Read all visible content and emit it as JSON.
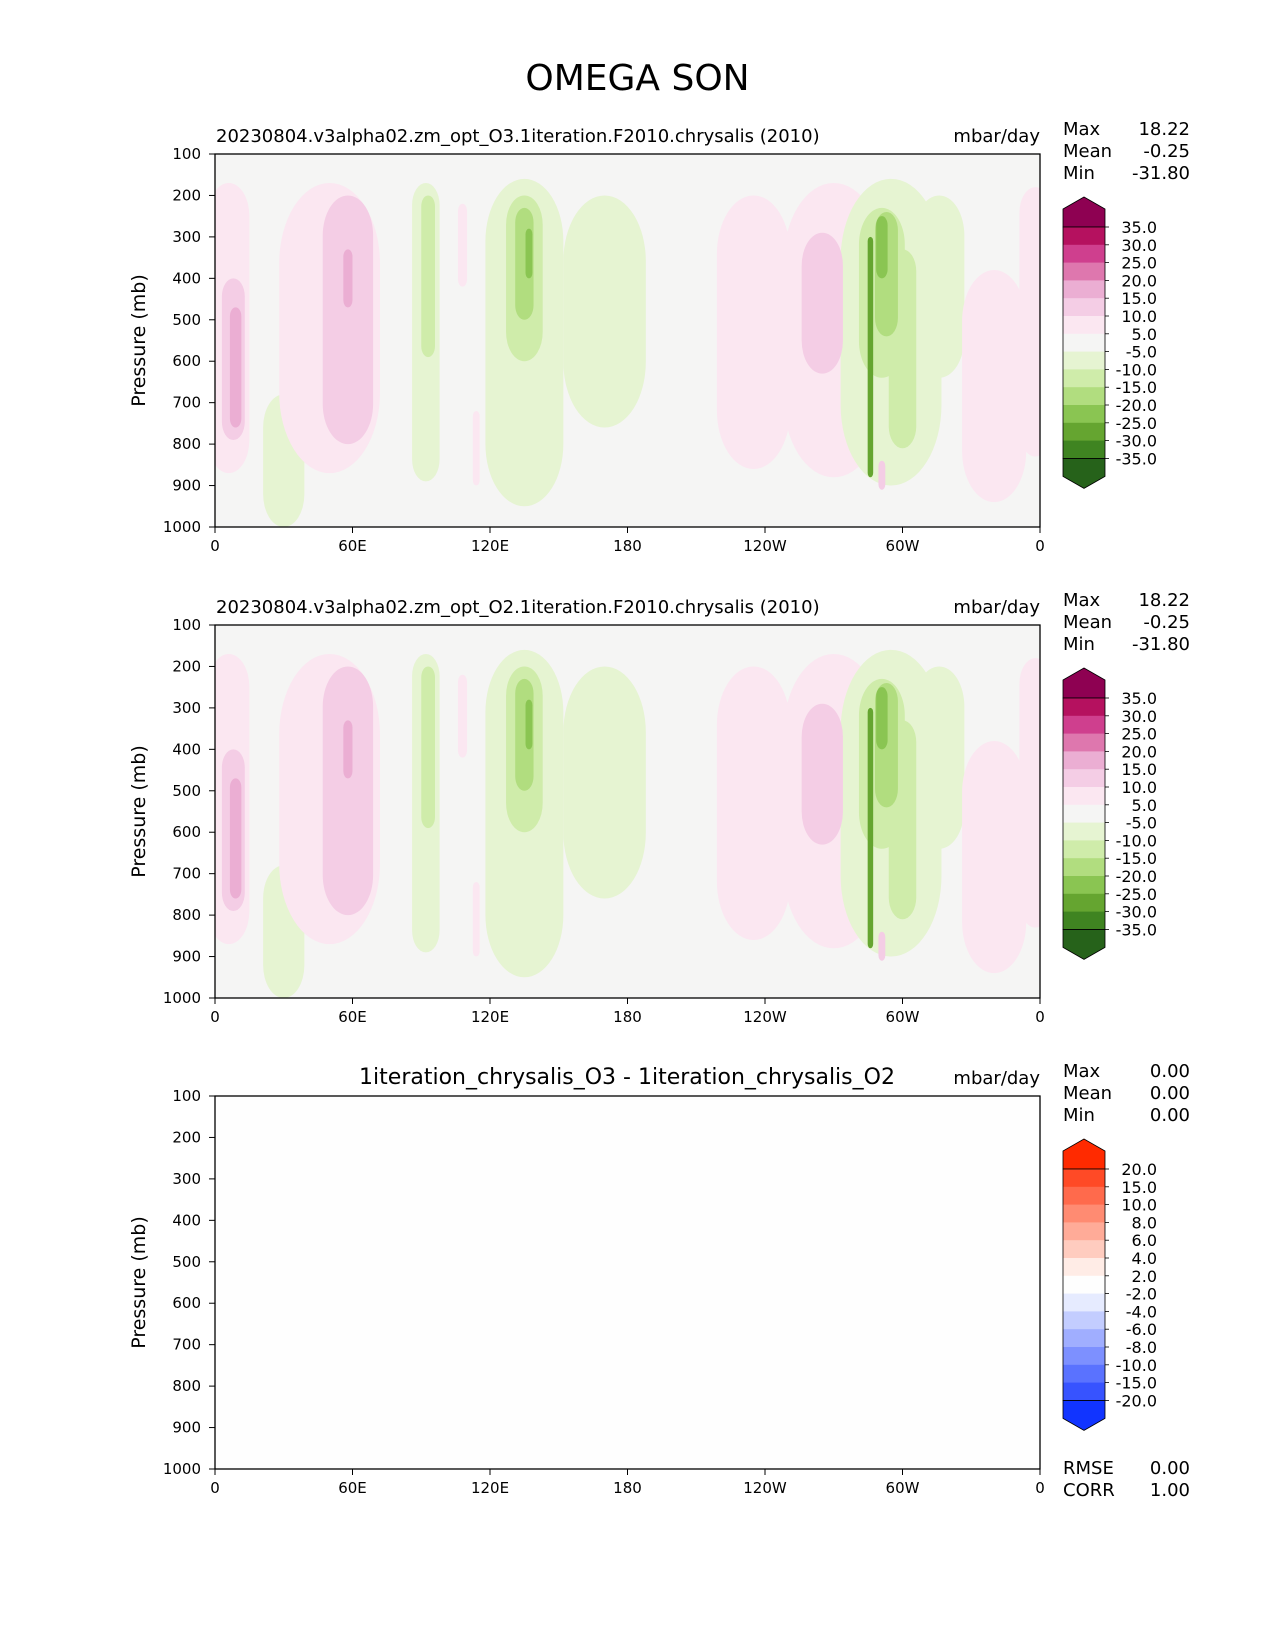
{
  "figure": {
    "title": "OMEGA SON"
  },
  "chart_data": [
    {
      "type": "contour",
      "title": "20230804.v3alpha02.zm_opt_O3.1iteration.F2010.chrysalis (2010)",
      "units": "mbar/day",
      "ylabel": "Pressure (mb)",
      "x_ticks": [
        "0",
        "60E",
        "120E",
        "180",
        "120W",
        "60W",
        "0"
      ],
      "x_range": [
        0,
        360
      ],
      "y_ticks": [
        "100",
        "200",
        "300",
        "400",
        "500",
        "600",
        "700",
        "800",
        "900",
        "1000"
      ],
      "y_range": [
        100,
        1000
      ],
      "stats": [
        {
          "label": "Max",
          "value": "18.22"
        },
        {
          "label": "Mean",
          "value": "-0.25"
        },
        {
          "label": "Min",
          "value": "-31.80"
        }
      ],
      "colorbar": {
        "levels": [
          "35.0",
          "30.0",
          "25.0",
          "20.0",
          "15.0",
          "10.0",
          "5.0",
          "-5.0",
          "-10.0",
          "-15.0",
          "-20.0",
          "-25.0",
          "-30.0",
          "-35.0"
        ],
        "colors": [
          "#8e0152",
          "#b5115f",
          "#cf3f8e",
          "#de77ae",
          "#ebaed3",
          "#f4cde5",
          "#fbe7f1",
          "#f5f5f4",
          "#e6f4d2",
          "#cfecaa",
          "#b1dd7f",
          "#8ac552",
          "#65a530",
          "#3f8421",
          "#26621a"
        ]
      },
      "features": [
        {
          "sign": "pos",
          "lon": 6,
          "p_top": 170,
          "p_bot": 870,
          "halfwidth": 9,
          "level": 1
        },
        {
          "sign": "pos",
          "lon": 8,
          "p_top": 400,
          "p_bot": 790,
          "halfwidth": 5,
          "level": 2
        },
        {
          "sign": "pos",
          "lon": 9,
          "p_top": 470,
          "p_bot": 760,
          "halfwidth": 2.5,
          "level": 3
        },
        {
          "sign": "neg",
          "lon": 30,
          "p_top": 680,
          "p_bot": 1000,
          "halfwidth": 9,
          "level": 1
        },
        {
          "sign": "pos",
          "lon": 50,
          "p_top": 170,
          "p_bot": 870,
          "halfwidth": 22,
          "level": 1
        },
        {
          "sign": "pos",
          "lon": 58,
          "p_top": 200,
          "p_bot": 800,
          "halfwidth": 11,
          "level": 2
        },
        {
          "sign": "pos",
          "lon": 58,
          "p_top": 330,
          "p_bot": 470,
          "halfwidth": 2,
          "level": 3
        },
        {
          "sign": "neg",
          "lon": 92,
          "p_top": 170,
          "p_bot": 890,
          "halfwidth": 6,
          "level": 1
        },
        {
          "sign": "neg",
          "lon": 93,
          "p_top": 200,
          "p_bot": 590,
          "halfwidth": 3,
          "level": 2
        },
        {
          "sign": "pos",
          "lon": 108,
          "p_top": 220,
          "p_bot": 420,
          "halfwidth": 2,
          "level": 1
        },
        {
          "sign": "pos",
          "lon": 114,
          "p_top": 720,
          "p_bot": 900,
          "halfwidth": 1.5,
          "level": 1
        },
        {
          "sign": "neg",
          "lon": 135,
          "p_top": 160,
          "p_bot": 950,
          "halfwidth": 17,
          "level": 1
        },
        {
          "sign": "neg",
          "lon": 135,
          "p_top": 200,
          "p_bot": 600,
          "halfwidth": 8,
          "level": 2
        },
        {
          "sign": "neg",
          "lon": 135,
          "p_top": 230,
          "p_bot": 500,
          "halfwidth": 4,
          "level": 3
        },
        {
          "sign": "neg",
          "lon": 137,
          "p_top": 280,
          "p_bot": 400,
          "halfwidth": 1.5,
          "level": 4
        },
        {
          "sign": "neg",
          "lon": 170,
          "p_top": 200,
          "p_bot": 760,
          "halfwidth": 18,
          "level": 1
        },
        {
          "sign": "pos",
          "lon": 235,
          "p_top": 200,
          "p_bot": 860,
          "halfwidth": 16,
          "level": 1
        },
        {
          "sign": "pos",
          "lon": 270,
          "p_top": 170,
          "p_bot": 880,
          "halfwidth": 22,
          "level": 1
        },
        {
          "sign": "pos",
          "lon": 265,
          "p_top": 290,
          "p_bot": 630,
          "halfwidth": 9,
          "level": 2
        },
        {
          "sign": "neg",
          "lon": 295,
          "p_top": 160,
          "p_bot": 900,
          "halfwidth": 22,
          "level": 1
        },
        {
          "sign": "neg",
          "lon": 291,
          "p_top": 230,
          "p_bot": 640,
          "halfwidth": 10,
          "level": 2
        },
        {
          "sign": "neg",
          "lon": 293,
          "p_top": 240,
          "p_bot": 540,
          "halfwidth": 5,
          "level": 3
        },
        {
          "sign": "neg",
          "lon": 291,
          "p_top": 250,
          "p_bot": 400,
          "halfwidth": 2.5,
          "level": 4
        },
        {
          "sign": "neg",
          "lon": 286,
          "p_top": 300,
          "p_bot": 880,
          "halfwidth": 1.2,
          "level": 5
        },
        {
          "sign": "neg",
          "lon": 300,
          "p_top": 330,
          "p_bot": 810,
          "halfwidth": 6,
          "level": 2
        },
        {
          "sign": "pos",
          "lon": 291,
          "p_top": 840,
          "p_bot": 910,
          "halfwidth": 1.5,
          "level": 2
        },
        {
          "sign": "neg",
          "lon": 316,
          "p_top": 200,
          "p_bot": 640,
          "halfwidth": 11,
          "level": 1
        },
        {
          "sign": "pos",
          "lon": 340,
          "p_top": 380,
          "p_bot": 940,
          "halfwidth": 14,
          "level": 1
        },
        {
          "sign": "pos",
          "lon": 358,
          "p_top": 180,
          "p_bot": 830,
          "halfwidth": 7,
          "level": 1
        }
      ]
    },
    {
      "type": "contour",
      "title": "20230804.v3alpha02.zm_opt_O2.1iteration.F2010.chrysalis (2010)",
      "units": "mbar/day",
      "ylabel": "Pressure (mb)",
      "x_ticks": [
        "0",
        "60E",
        "120E",
        "180",
        "120W",
        "60W",
        "0"
      ],
      "x_range": [
        0,
        360
      ],
      "y_ticks": [
        "100",
        "200",
        "300",
        "400",
        "500",
        "600",
        "700",
        "800",
        "900",
        "1000"
      ],
      "y_range": [
        100,
        1000
      ],
      "stats": [
        {
          "label": "Max",
          "value": "18.22"
        },
        {
          "label": "Mean",
          "value": "-0.25"
        },
        {
          "label": "Min",
          "value": "-31.80"
        }
      ],
      "colorbar": {
        "levels": [
          "35.0",
          "30.0",
          "25.0",
          "20.0",
          "15.0",
          "10.0",
          "5.0",
          "-5.0",
          "-10.0",
          "-15.0",
          "-20.0",
          "-25.0",
          "-30.0",
          "-35.0"
        ],
        "colors": [
          "#8e0152",
          "#b5115f",
          "#cf3f8e",
          "#de77ae",
          "#ebaed3",
          "#f4cde5",
          "#fbe7f1",
          "#f5f5f4",
          "#e6f4d2",
          "#cfecaa",
          "#b1dd7f",
          "#8ac552",
          "#65a530",
          "#3f8421",
          "#26621a"
        ]
      },
      "features": [
        {
          "sign": "pos",
          "lon": 6,
          "p_top": 170,
          "p_bot": 870,
          "halfwidth": 9,
          "level": 1
        },
        {
          "sign": "pos",
          "lon": 8,
          "p_top": 400,
          "p_bot": 790,
          "halfwidth": 5,
          "level": 2
        },
        {
          "sign": "pos",
          "lon": 9,
          "p_top": 470,
          "p_bot": 760,
          "halfwidth": 2.5,
          "level": 3
        },
        {
          "sign": "neg",
          "lon": 30,
          "p_top": 680,
          "p_bot": 1000,
          "halfwidth": 9,
          "level": 1
        },
        {
          "sign": "pos",
          "lon": 50,
          "p_top": 170,
          "p_bot": 870,
          "halfwidth": 22,
          "level": 1
        },
        {
          "sign": "pos",
          "lon": 58,
          "p_top": 200,
          "p_bot": 800,
          "halfwidth": 11,
          "level": 2
        },
        {
          "sign": "pos",
          "lon": 58,
          "p_top": 330,
          "p_bot": 470,
          "halfwidth": 2,
          "level": 3
        },
        {
          "sign": "neg",
          "lon": 92,
          "p_top": 170,
          "p_bot": 890,
          "halfwidth": 6,
          "level": 1
        },
        {
          "sign": "neg",
          "lon": 93,
          "p_top": 200,
          "p_bot": 590,
          "halfwidth": 3,
          "level": 2
        },
        {
          "sign": "pos",
          "lon": 108,
          "p_top": 220,
          "p_bot": 420,
          "halfwidth": 2,
          "level": 1
        },
        {
          "sign": "pos",
          "lon": 114,
          "p_top": 720,
          "p_bot": 900,
          "halfwidth": 1.5,
          "level": 1
        },
        {
          "sign": "neg",
          "lon": 135,
          "p_top": 160,
          "p_bot": 950,
          "halfwidth": 17,
          "level": 1
        },
        {
          "sign": "neg",
          "lon": 135,
          "p_top": 200,
          "p_bot": 600,
          "halfwidth": 8,
          "level": 2
        },
        {
          "sign": "neg",
          "lon": 135,
          "p_top": 230,
          "p_bot": 500,
          "halfwidth": 4,
          "level": 3
        },
        {
          "sign": "neg",
          "lon": 137,
          "p_top": 280,
          "p_bot": 400,
          "halfwidth": 1.5,
          "level": 4
        },
        {
          "sign": "neg",
          "lon": 170,
          "p_top": 200,
          "p_bot": 760,
          "halfwidth": 18,
          "level": 1
        },
        {
          "sign": "pos",
          "lon": 235,
          "p_top": 200,
          "p_bot": 860,
          "halfwidth": 16,
          "level": 1
        },
        {
          "sign": "pos",
          "lon": 270,
          "p_top": 170,
          "p_bot": 880,
          "halfwidth": 22,
          "level": 1
        },
        {
          "sign": "pos",
          "lon": 265,
          "p_top": 290,
          "p_bot": 630,
          "halfwidth": 9,
          "level": 2
        },
        {
          "sign": "neg",
          "lon": 295,
          "p_top": 160,
          "p_bot": 900,
          "halfwidth": 22,
          "level": 1
        },
        {
          "sign": "neg",
          "lon": 291,
          "p_top": 230,
          "p_bot": 640,
          "halfwidth": 10,
          "level": 2
        },
        {
          "sign": "neg",
          "lon": 293,
          "p_top": 240,
          "p_bot": 540,
          "halfwidth": 5,
          "level": 3
        },
        {
          "sign": "neg",
          "lon": 291,
          "p_top": 250,
          "p_bot": 400,
          "halfwidth": 2.5,
          "level": 4
        },
        {
          "sign": "neg",
          "lon": 286,
          "p_top": 300,
          "p_bot": 880,
          "halfwidth": 1.2,
          "level": 5
        },
        {
          "sign": "neg",
          "lon": 300,
          "p_top": 330,
          "p_bot": 810,
          "halfwidth": 6,
          "level": 2
        },
        {
          "sign": "pos",
          "lon": 291,
          "p_top": 840,
          "p_bot": 910,
          "halfwidth": 1.5,
          "level": 2
        },
        {
          "sign": "neg",
          "lon": 316,
          "p_top": 200,
          "p_bot": 640,
          "halfwidth": 11,
          "level": 1
        },
        {
          "sign": "pos",
          "lon": 340,
          "p_top": 380,
          "p_bot": 940,
          "halfwidth": 14,
          "level": 1
        },
        {
          "sign": "pos",
          "lon": 358,
          "p_top": 180,
          "p_bot": 830,
          "halfwidth": 7,
          "level": 1
        }
      ]
    },
    {
      "type": "contour",
      "title": "1iteration_chrysalis_O3 - 1iteration_chrysalis_O2",
      "units": "mbar/day",
      "ylabel": "Pressure (mb)",
      "x_ticks": [
        "0",
        "60E",
        "120E",
        "180",
        "120W",
        "60W",
        "0"
      ],
      "x_range": [
        0,
        360
      ],
      "y_ticks": [
        "100",
        "200",
        "300",
        "400",
        "500",
        "600",
        "700",
        "800",
        "900",
        "1000"
      ],
      "y_range": [
        100,
        1000
      ],
      "stats": [
        {
          "label": "Max",
          "value": "0.00"
        },
        {
          "label": "Mean",
          "value": "0.00"
        },
        {
          "label": "Min",
          "value": "0.00"
        }
      ],
      "bottom_stats": [
        {
          "label": "RMSE",
          "value": "0.00"
        },
        {
          "label": "CORR",
          "value": "1.00"
        }
      ],
      "colorbar": {
        "levels": [
          "20.0",
          "15.0",
          "10.0",
          "8.0",
          "6.0",
          "4.0",
          "2.0",
          "-2.0",
          "-4.0",
          "-6.0",
          "-8.0",
          "-10.0",
          "-15.0",
          "-20.0"
        ],
        "colors": [
          "#ff2a00",
          "#ff4a26",
          "#ff6a4c",
          "#ff8b72",
          "#ffab98",
          "#ffccbf",
          "#ffece6",
          "#fefefe",
          "#e6ebff",
          "#c3cdff",
          "#a0aeff",
          "#7d90ff",
          "#5a72ff",
          "#3753ff",
          "#1134ff"
        ]
      },
      "features": []
    }
  ]
}
